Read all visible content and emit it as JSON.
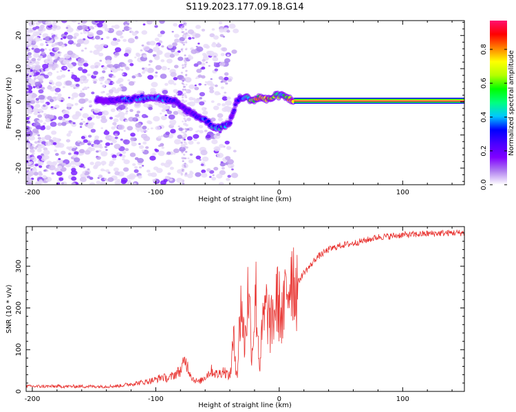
{
  "title": "S119.2023.177.09.18.G14",
  "chart_data": [
    {
      "type": "heatmap",
      "xlabel": "Height of straight line (km)",
      "ylabel": "Frequency (Hz)",
      "xlim": [
        -205,
        150
      ],
      "ylim": [
        -25,
        24.5
      ],
      "xticks": [
        -200,
        -100,
        0,
        100
      ],
      "yticks": [
        -20,
        -10,
        0,
        10,
        20
      ],
      "colorbar": {
        "label": "Normalized spectral amplitude",
        "range": [
          0,
          0.97
        ],
        "ticks": [
          "0.0",
          "0.2",
          "0.4",
          "0.6",
          "0.8"
        ],
        "tick_values": [
          0.0,
          0.2,
          0.4,
          0.6,
          0.8
        ],
        "colors": [
          "#ffffff",
          "#b080f0",
          "#8000ff",
          "#4a00ff",
          "#0000ff",
          "#00c8ff",
          "#00ff80",
          "#00ff00",
          "#b4ff00",
          "#ffff00",
          "#ff8000",
          "#ff0000",
          "#ff1070"
        ]
      },
      "ridge": {
        "x": [
          -145,
          -135,
          -125,
          -115,
          -105,
          -95,
          -85,
          -75,
          -68,
          -60,
          -55,
          -50,
          -45,
          -40,
          -37,
          -34,
          -30,
          -25,
          -20,
          -15,
          -10,
          -5,
          0,
          5,
          10,
          20,
          40,
          60,
          80,
          100,
          120,
          150
        ],
        "y": [
          0,
          0.5,
          0.7,
          1.0,
          1.5,
          1.0,
          0.0,
          -2.5,
          -4.0,
          -5.5,
          -7.0,
          -7.8,
          -7.5,
          -6.0,
          -3.0,
          0.5,
          1.5,
          1.0,
          0.5,
          1.5,
          0.5,
          1.5,
          2.0,
          1.5,
          0.5,
          0.2,
          0.2,
          0.2,
          0.2,
          0.2,
          0.2,
          0.2
        ],
        "amplitude": [
          0.2,
          0.25,
          0.4,
          0.4,
          0.4,
          0.35,
          0.3,
          0.25,
          0.3,
          0.35,
          0.4,
          0.45,
          0.4,
          0.3,
          0.2,
          0.3,
          0.45,
          0.6,
          0.75,
          0.85,
          0.8,
          0.7,
          0.6,
          0.55,
          0.95,
          0.97,
          0.97,
          0.97,
          0.97,
          0.97,
          0.97,
          0.97
        ]
      }
    },
    {
      "type": "line",
      "xlabel": "Height of straight line (km)",
      "ylabel": "SNR (10 * v/v)",
      "xlim": [
        -205,
        150
      ],
      "ylim": [
        0,
        395
      ],
      "xticks": [
        -200,
        -100,
        0,
        100
      ],
      "yticks": [
        0,
        100,
        200,
        300
      ],
      "series": [
        {
          "color": "#e8312e",
          "x": [
            -205,
            -180,
            -160,
            -140,
            -130,
            -120,
            -110,
            -100,
            -95,
            -90,
            -85,
            -80,
            -76,
            -73,
            -70,
            -65,
            -60,
            -55,
            -50,
            -45,
            -40,
            -37,
            -34,
            -31,
            -28,
            -25,
            -22,
            -19,
            -16,
            -13,
            -10,
            -7,
            -4,
            -2,
            0,
            3,
            5,
            8,
            10,
            13,
            16,
            20,
            25,
            30,
            40,
            50,
            60,
            70,
            80,
            90,
            100,
            110,
            120,
            130,
            140,
            150
          ],
          "y": [
            12,
            12,
            12,
            12,
            13,
            18,
            22,
            28,
            35,
            30,
            40,
            50,
            75,
            50,
            30,
            22,
            35,
            50,
            40,
            50,
            35,
            120,
            40,
            220,
            110,
            250,
            90,
            240,
            60,
            165,
            200,
            150,
            190,
            220,
            205,
            170,
            230,
            260,
            300,
            250,
            265,
            285,
            300,
            320,
            340,
            350,
            355,
            362,
            370,
            372,
            375,
            376,
            378,
            379,
            380,
            380
          ]
        }
      ]
    }
  ]
}
